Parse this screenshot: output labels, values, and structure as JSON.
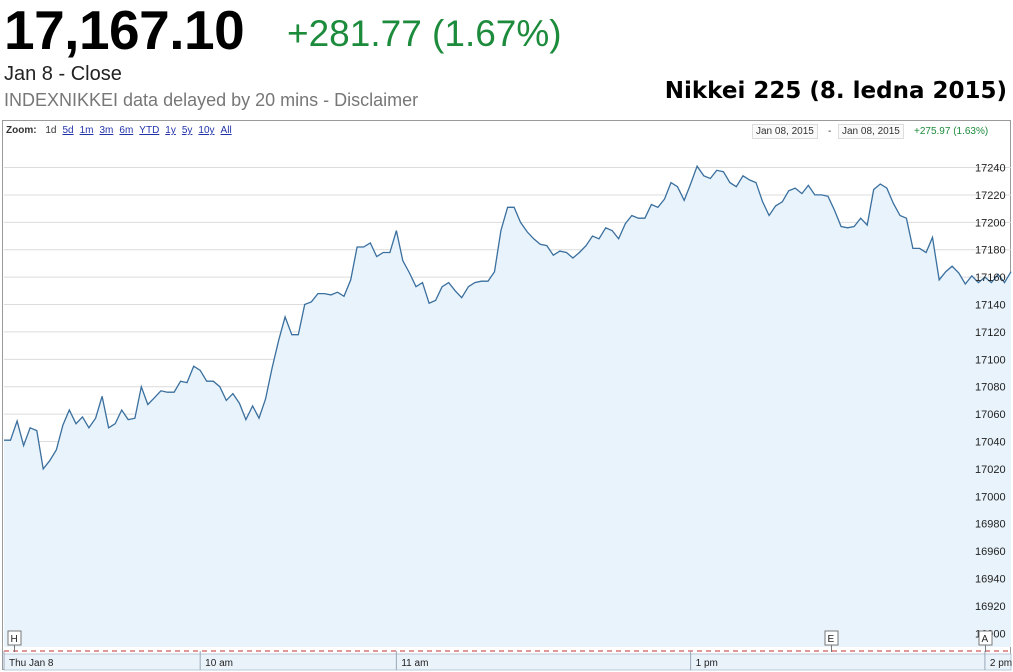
{
  "quote": {
    "price": "17,167.10",
    "change": "+281.77 (1.67%)",
    "close_label": "Jan 8 - Close",
    "source_line": "INDEXNIKKEI data delayed by 20 mins - Disclaimer"
  },
  "caption": "Nikkei 225 (8. ledna 2015)",
  "colors": {
    "up": "#1c8b3c",
    "line": "#3a6f9e",
    "fill": "#e8f3fb",
    "grid": "#dcdcdc"
  },
  "toolbar": {
    "zoom_label": "Zoom:",
    "zoom_options": [
      "1d",
      "5d",
      "1m",
      "3m",
      "6m",
      "YTD",
      "1y",
      "5y",
      "10y",
      "All"
    ],
    "selected_zoom": "1d",
    "range_start": "Jan 08, 2015",
    "range_sep": "-",
    "range_end": "Jan 08, 2015",
    "range_change": "+275.97 (1.63%)"
  },
  "markers": {
    "h": "H",
    "e": "E",
    "a": "A"
  },
  "chart_data": {
    "type": "area",
    "title": "",
    "xlabel": "",
    "ylabel": "",
    "ylim": [
      16890,
      17255
    ],
    "y_ticks": [
      16900,
      16920,
      16940,
      16960,
      16980,
      17000,
      17020,
      17040,
      17060,
      17080,
      17100,
      17120,
      17140,
      17160,
      17180,
      17200,
      17220,
      17240
    ],
    "x_ticks": [
      "Thu Jan 8",
      "10 am",
      "11 am",
      "1 pm",
      "2 pm"
    ],
    "x_tick_hours": [
      9.0,
      10.0,
      11.0,
      12.5,
      14.0
    ],
    "grid": true,
    "legend": "none",
    "series": [
      {
        "values": [
          [
            9.0,
            17041
          ],
          [
            9.033,
            17041
          ],
          [
            9.067,
            17055
          ],
          [
            9.1,
            17037
          ],
          [
            9.133,
            17050
          ],
          [
            9.167,
            17048
          ],
          [
            9.2,
            17020
          ],
          [
            9.233,
            17026
          ],
          [
            9.267,
            17034
          ],
          [
            9.3,
            17052
          ],
          [
            9.333,
            17063
          ],
          [
            9.367,
            17053
          ],
          [
            9.4,
            17058
          ],
          [
            9.433,
            17050
          ],
          [
            9.467,
            17057
          ],
          [
            9.5,
            17073
          ],
          [
            9.533,
            17050
          ],
          [
            9.567,
            17053
          ],
          [
            9.6,
            17063
          ],
          [
            9.633,
            17056
          ],
          [
            9.667,
            17057
          ],
          [
            9.7,
            17080
          ],
          [
            9.733,
            17067
          ],
          [
            9.767,
            17072
          ],
          [
            9.8,
            17077
          ],
          [
            9.833,
            17076
          ],
          [
            9.867,
            17076
          ],
          [
            9.9,
            17084
          ],
          [
            9.933,
            17083
          ],
          [
            9.967,
            17095
          ],
          [
            10.0,
            17092
          ],
          [
            10.033,
            17084
          ],
          [
            10.067,
            17084
          ],
          [
            10.1,
            17080
          ],
          [
            10.133,
            17070
          ],
          [
            10.167,
            17075
          ],
          [
            10.2,
            17068
          ],
          [
            10.233,
            17056
          ],
          [
            10.267,
            17066
          ],
          [
            10.3,
            17057
          ],
          [
            10.333,
            17071
          ],
          [
            10.367,
            17094
          ],
          [
            10.4,
            17114
          ],
          [
            10.433,
            17131
          ],
          [
            10.467,
            17118
          ],
          [
            10.5,
            17118
          ],
          [
            10.533,
            17140
          ],
          [
            10.567,
            17142
          ],
          [
            10.6,
            17148
          ],
          [
            10.633,
            17148
          ],
          [
            10.667,
            17147
          ],
          [
            10.7,
            17149
          ],
          [
            10.733,
            17146
          ],
          [
            10.767,
            17158
          ],
          [
            10.8,
            17182
          ],
          [
            10.833,
            17182
          ],
          [
            10.867,
            17185
          ],
          [
            10.9,
            17175
          ],
          [
            10.933,
            17178
          ],
          [
            10.967,
            17178
          ],
          [
            11.0,
            17194
          ],
          [
            11.033,
            17172
          ],
          [
            11.067,
            17163
          ],
          [
            11.1,
            17153
          ],
          [
            11.133,
            17156
          ],
          [
            11.167,
            17141
          ],
          [
            11.2,
            17143
          ],
          [
            11.233,
            17153
          ],
          [
            11.267,
            17156
          ],
          [
            11.3,
            17150
          ],
          [
            11.333,
            17145
          ],
          [
            11.367,
            17153
          ],
          [
            11.4,
            17156
          ],
          [
            11.433,
            17157
          ],
          [
            11.467,
            17157
          ],
          [
            11.5,
            17164
          ],
          [
            11.533,
            17194
          ],
          [
            11.567,
            17211
          ],
          [
            11.6,
            17211
          ],
          [
            11.633,
            17200
          ],
          [
            11.667,
            17193
          ],
          [
            11.7,
            17188
          ],
          [
            11.733,
            17184
          ],
          [
            11.767,
            17183
          ],
          [
            11.8,
            17176
          ],
          [
            11.833,
            17179
          ],
          [
            11.867,
            17178
          ],
          [
            11.9,
            17174
          ],
          [
            11.933,
            17178
          ],
          [
            11.967,
            17183
          ],
          [
            12.0,
            17190
          ],
          [
            12.033,
            17188
          ],
          [
            12.067,
            17196
          ],
          [
            12.1,
            17194
          ],
          [
            12.133,
            17188
          ],
          [
            12.167,
            17199
          ],
          [
            12.2,
            17205
          ],
          [
            12.233,
            17203
          ],
          [
            12.267,
            17203
          ],
          [
            12.3,
            17213
          ],
          [
            12.333,
            17211
          ],
          [
            12.367,
            17217
          ],
          [
            12.4,
            17229
          ],
          [
            12.433,
            17226
          ],
          [
            12.467,
            17216
          ],
          [
            12.5,
            17228
          ],
          [
            12.533,
            17241
          ],
          [
            12.567,
            17234
          ],
          [
            12.6,
            17232
          ],
          [
            12.633,
            17238
          ],
          [
            12.667,
            17237
          ],
          [
            12.7,
            17229
          ],
          [
            12.733,
            17226
          ],
          [
            12.767,
            17234
          ],
          [
            12.8,
            17231
          ],
          [
            12.833,
            17229
          ],
          [
            12.867,
            17215
          ],
          [
            12.9,
            17205
          ],
          [
            12.933,
            17212
          ],
          [
            12.967,
            17215
          ],
          [
            13.0,
            17223
          ],
          [
            13.033,
            17225
          ],
          [
            13.067,
            17221
          ],
          [
            13.1,
            17227
          ],
          [
            13.133,
            17220
          ],
          [
            13.167,
            17220
          ],
          [
            13.2,
            17219
          ],
          [
            13.233,
            17209
          ],
          [
            13.267,
            17197
          ],
          [
            13.3,
            17196
          ],
          [
            13.333,
            17197
          ],
          [
            13.367,
            17203
          ],
          [
            13.4,
            17198
          ],
          [
            13.433,
            17224
          ],
          [
            13.467,
            17228
          ],
          [
            13.5,
            17225
          ],
          [
            13.533,
            17214
          ],
          [
            13.567,
            17205
          ],
          [
            13.6,
            17203
          ],
          [
            13.633,
            17181
          ],
          [
            13.667,
            17181
          ],
          [
            13.7,
            17178
          ],
          [
            13.733,
            17189
          ],
          [
            13.767,
            17158
          ],
          [
            13.8,
            17164
          ],
          [
            13.833,
            17168
          ],
          [
            13.867,
            17163
          ],
          [
            13.9,
            17155
          ],
          [
            13.933,
            17161
          ],
          [
            13.967,
            17156
          ],
          [
            14.0,
            17160
          ],
          [
            14.033,
            17156
          ],
          [
            14.067,
            17162
          ],
          [
            14.1,
            17156
          ],
          [
            14.133,
            17164
          ]
        ]
      }
    ]
  }
}
